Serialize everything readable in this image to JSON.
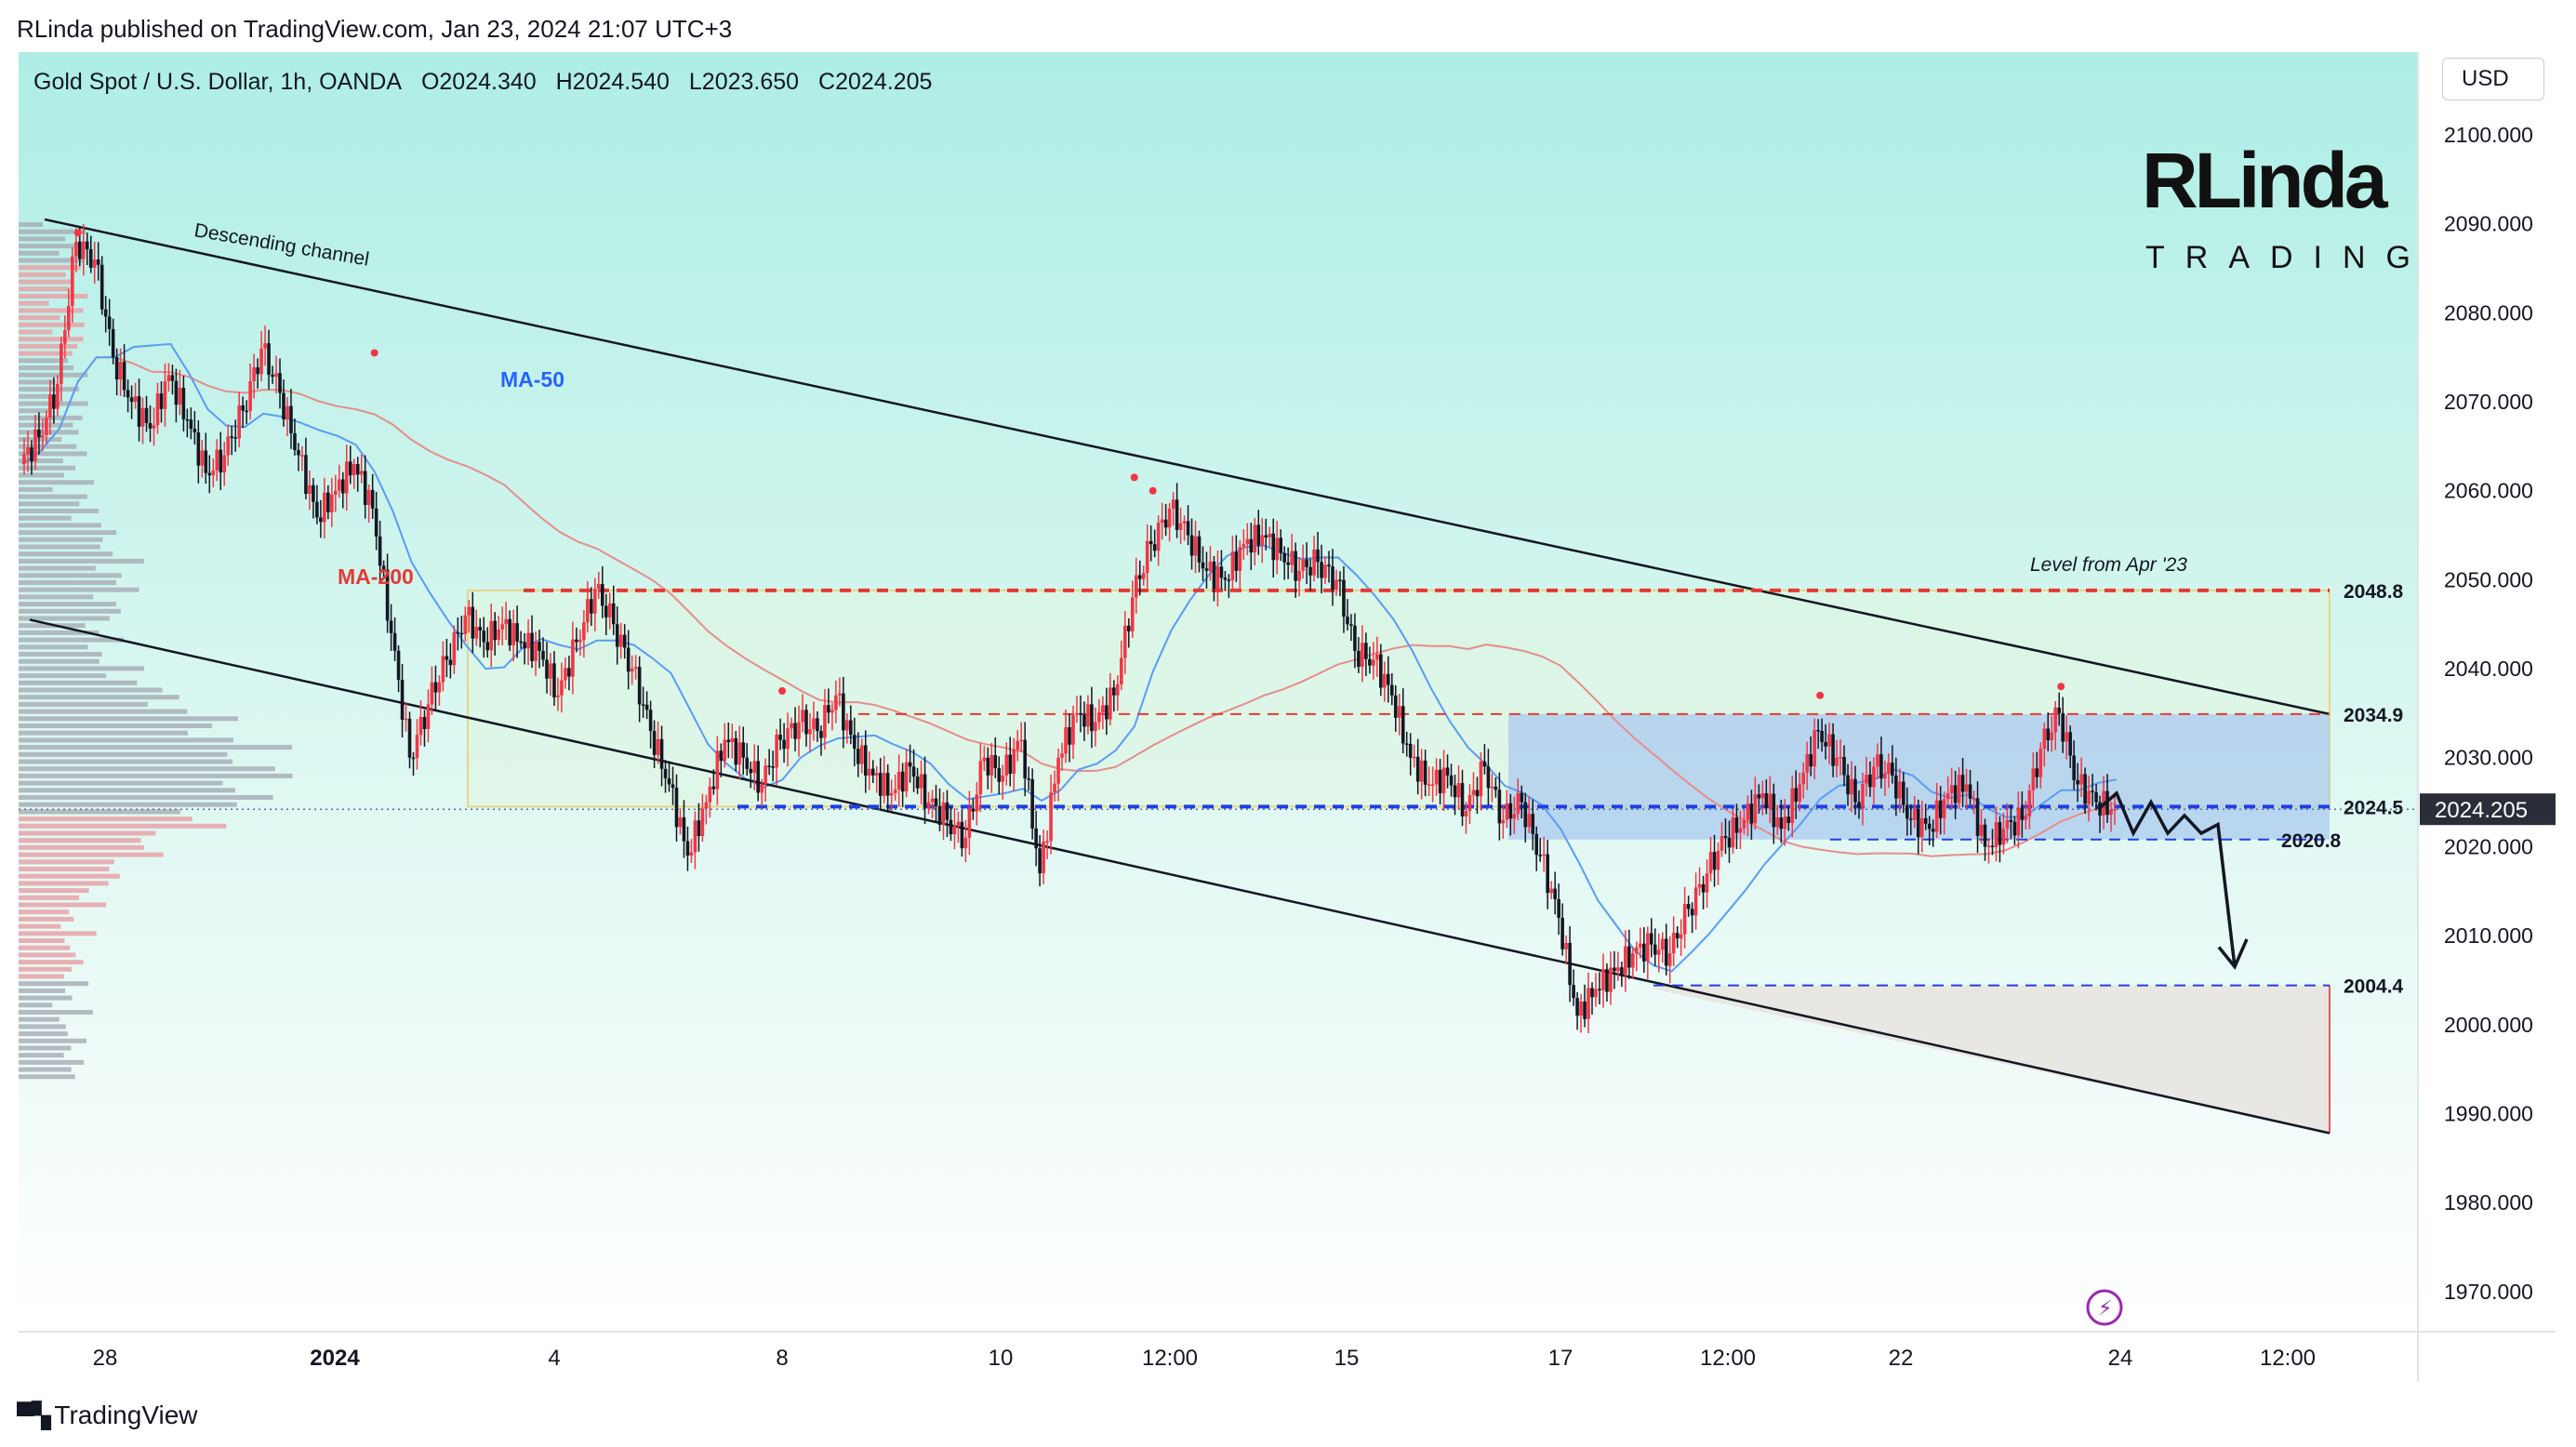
{
  "publisher": "RLinda published on TradingView.com, Jan 23, 2024 21:07 UTC+3",
  "symbol": {
    "name": "Gold Spot / U.S. Dollar, 1h, OANDA",
    "open": "O2024.340",
    "high": "H2024.540",
    "low": "L2023.650",
    "close": "C2024.205"
  },
  "currency": "USD",
  "brand": {
    "top": "RLinda",
    "bottom": "TRADING"
  },
  "footer": "TradingView",
  "colors": {
    "bg_top": "#aeeee6",
    "bg_bottom": "#ffffff",
    "up": "#f23645",
    "down": "#131722",
    "ma50": "#5b9cf6",
    "ma200": "#e88c8c",
    "level_red": "#e53935",
    "level_blue": "#1e40e6",
    "zone_blue": "#a8c8f0",
    "zone_green": "#e0f5e0",
    "zone_gray": "#e8e4e0",
    "highlight": "#2a2e39",
    "lightning": "#9c27b0"
  },
  "chart_data": {
    "type": "candlestick",
    "title": "Gold Spot / U.S. Dollar, 1h, OANDA",
    "ylim": [
      1965,
      2105
    ],
    "y_ticks": [
      "2100.000",
      "2090.000",
      "2080.000",
      "2070.000",
      "2060.000",
      "2050.000",
      "2040.000",
      "2030.000",
      "2020.000",
      "2010.000",
      "2000.000",
      "1990.000",
      "1980.000",
      "1970.000"
    ],
    "x_ticks": [
      "28",
      "2024",
      "4",
      "8",
      "10",
      "12:00",
      "15",
      "17",
      "12:00",
      "22",
      "24",
      "12:00"
    ],
    "last_price": "2024.205",
    "levels": [
      {
        "label": "2048.8",
        "value": 2048.8,
        "style": "red-dashed"
      },
      {
        "label": "2034.9",
        "value": 2034.9,
        "style": "red-dashed"
      },
      {
        "label": "2024.5",
        "value": 2024.5,
        "style": "blue-dashed"
      },
      {
        "label": "2020.8",
        "value": 2020.8,
        "style": "blue-dashed"
      },
      {
        "label": "2004.4",
        "value": 2004.4,
        "style": "blue-dashed"
      }
    ],
    "annotations": [
      "Descending channel",
      "MA-50",
      "MA-200",
      "Level from Apr '23"
    ],
    "price_path": [
      2063,
      2066,
      2072,
      2088,
      2086,
      2075,
      2070,
      2067,
      2073,
      2068,
      2062,
      2064,
      2069,
      2076,
      2071,
      2064,
      2057,
      2060,
      2063,
      2058,
      2044,
      2030,
      2036,
      2041,
      2046,
      2043,
      2045,
      2043,
      2042,
      2037,
      2043,
      2049,
      2045,
      2040,
      2033,
      2027,
      2019,
      2025,
      2032,
      2030,
      2027,
      2032,
      2034,
      2033,
      2037,
      2031,
      2028,
      2026,
      2029,
      2025,
      2023,
      2021,
      2030,
      2028,
      2032,
      2017,
      2030,
      2035,
      2034,
      2037,
      2048,
      2054,
      2058,
      2055,
      2051,
      2050,
      2054,
      2055,
      2053,
      2051,
      2052,
      2050,
      2042,
      2041,
      2037,
      2030,
      2027,
      2028,
      2024,
      2029,
      2023,
      2025,
      2019,
      2012,
      2001,
      2004,
      2006,
      2008,
      2009,
      2008,
      2013,
      2017,
      2021,
      2023,
      2026,
      2022,
      2027,
      2033,
      2030,
      2025,
      2029,
      2028,
      2023,
      2022,
      2026,
      2027,
      2020,
      2022,
      2023,
      2031,
      2035,
      2027,
      2025,
      2024.2
    ],
    "projection": [
      2024.2,
      2026,
      2021.5,
      2025,
      2021.5,
      2023.5,
      2021.5,
      2022.5,
      2006.5
    ],
    "channel": {
      "upper": [
        [
          "Dec 28",
          2090.5
        ],
        [
          "Jan 24 12:00",
          2034.9
        ]
      ],
      "lower": [
        [
          "Dec 27",
          2045.5
        ],
        [
          "Jan 24 12:00",
          1987.8
        ]
      ]
    }
  }
}
